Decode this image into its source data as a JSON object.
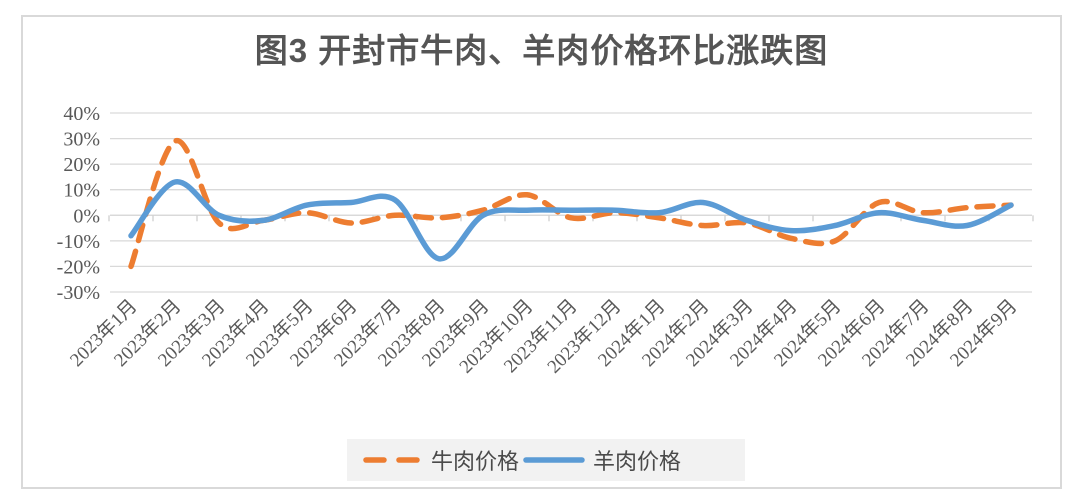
{
  "chart_data": {
    "type": "line",
    "title": "图3 开封市牛肉、羊肉价格环比涨跌图",
    "categories": [
      "2023年1月",
      "2023年2月",
      "2023年3月",
      "2023年4月",
      "2023年5月",
      "2023年6月",
      "2023年7月",
      "2023年8月",
      "2023年9月",
      "2023年10月",
      "2023年11月",
      "2023年12月",
      "2024年1月",
      "2024年2月",
      "2024年3月",
      "2024年4月",
      "2024年5月",
      "2024年6月",
      "2024年7月",
      "2024年8月",
      "2024年9月"
    ],
    "series": [
      {
        "name": "牛肉价格",
        "style": "dashed",
        "color": "#ED7D31",
        "values": [
          -20,
          29,
          -3,
          -2,
          1,
          -3,
          0,
          -1,
          2,
          8,
          -1,
          1,
          -1,
          -4,
          -3,
          -9,
          -10,
          5,
          1,
          3,
          4
        ]
      },
      {
        "name": "羊肉价格",
        "style": "solid",
        "color": "#5B9BD5",
        "values": [
          -8,
          13,
          0,
          -2,
          4,
          5,
          6,
          -17,
          0,
          2,
          2,
          2,
          1,
          5,
          -2,
          -6,
          -4,
          1,
          -2,
          -4,
          4
        ]
      }
    ],
    "xlabel": "",
    "ylabel": "",
    "ylim": [
      -30,
      40
    ],
    "y_tick_labels": [
      "40%",
      "30%",
      "20%",
      "10%",
      "0%",
      "-10%",
      "-20%",
      "-30%"
    ],
    "y_tick_values": [
      40,
      30,
      20,
      10,
      0,
      -10,
      -20,
      -30
    ],
    "y_axis_format": "percent",
    "grid": true,
    "smooth_lines": true,
    "x_label_rotation": 45,
    "legend_position": "bottom"
  },
  "colors": {
    "gridline": "#d9d9d9",
    "axis_line": "#d9d9d9",
    "tick": "#cfcfcf",
    "axis_text": "#595959",
    "title_text": "#555555",
    "legend_background": "#f2f2f2"
  }
}
